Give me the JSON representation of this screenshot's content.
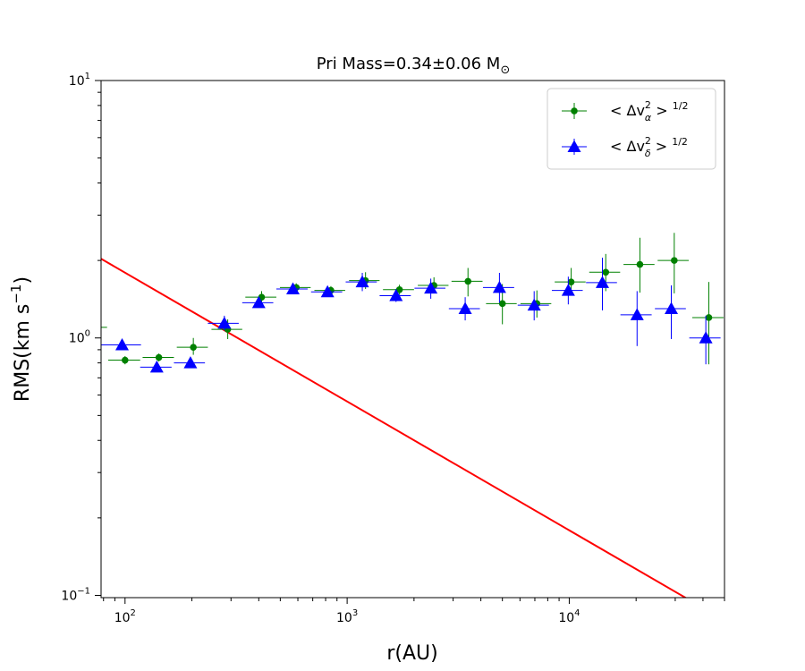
{
  "chart_data": {
    "type": "scatter",
    "title_main": "Pri Mass=0.34±0.06 M",
    "title_sub": "⊙",
    "xlabel": "r(AU)",
    "ylabel_main": "RMS(km s",
    "ylabel_sup": "−1",
    "ylabel_end": ")",
    "x_scale": "log",
    "y_scale": "log",
    "xlim": [
      78,
      50000
    ],
    "ylim": [
      0.098,
      10
    ],
    "x_ticks": [
      {
        "value": 100,
        "base": "10",
        "exp": "2"
      },
      {
        "value": 1000,
        "base": "10",
        "exp": "3"
      },
      {
        "value": 10000,
        "base": "10",
        "exp": "4"
      }
    ],
    "y_ticks": [
      {
        "value": 0.1,
        "base": "10",
        "exp": "−1"
      },
      {
        "value": 1,
        "base": "10",
        "exp": "0"
      },
      {
        "value": 10,
        "base": "10",
        "exp": "1"
      }
    ],
    "legend_position": "top-right",
    "series": [
      {
        "legend_label": "< Δv²α >^(1/2)",
        "legend_text": "< Δv",
        "legend_sup": "2",
        "legend_sub": "α",
        "legend_tail": "> ",
        "legend_pow": "1/2",
        "color": "#008000",
        "marker": "circle",
        "points": [
          {
            "x": 70,
            "y": 1.1,
            "xerr": [
              58,
              83
            ],
            "yerr": [
              1.1,
              1.1
            ]
          },
          {
            "x": 100,
            "y": 0.82,
            "xerr": [
              84,
              117
            ],
            "yerr": [
              0.79,
              0.85
            ]
          },
          {
            "x": 142,
            "y": 0.84,
            "xerr": [
              120,
              166
            ],
            "yerr": [
              0.81,
              0.87
            ]
          },
          {
            "x": 203,
            "y": 0.92,
            "xerr": [
              171,
              236
            ],
            "yerr": [
              0.86,
              1.0
            ]
          },
          {
            "x": 290,
            "y": 1.08,
            "xerr": [
              245,
              337
            ],
            "yerr": [
              0.99,
              1.18
            ]
          },
          {
            "x": 412,
            "y": 1.44,
            "xerr": [
              348,
              480
            ],
            "yerr": [
              1.36,
              1.52
            ]
          },
          {
            "x": 590,
            "y": 1.57,
            "xerr": [
              498,
              685
            ],
            "yerr": [
              1.51,
              1.63
            ]
          },
          {
            "x": 845,
            "y": 1.53,
            "xerr": [
              712,
              980
            ],
            "yerr": [
              1.48,
              1.59
            ]
          },
          {
            "x": 1210,
            "y": 1.67,
            "xerr": [
              1020,
              1400
            ],
            "yerr": [
              1.55,
              1.8
            ]
          },
          {
            "x": 1720,
            "y": 1.54,
            "xerr": [
              1450,
              2000
            ],
            "yerr": [
              1.47,
              1.61
            ]
          },
          {
            "x": 2460,
            "y": 1.6,
            "xerr": [
              2080,
              2860
            ],
            "yerr": [
              1.5,
              1.72
            ]
          },
          {
            "x": 3500,
            "y": 1.66,
            "xerr": [
              2950,
              4070
            ],
            "yerr": [
              1.45,
              1.87
            ]
          },
          {
            "x": 5000,
            "y": 1.36,
            "xerr": [
              4220,
              5800
            ],
            "yerr": [
              1.13,
              1.62
            ]
          },
          {
            "x": 7150,
            "y": 1.36,
            "xerr": [
              6030,
              8300
            ],
            "yerr": [
              1.2,
              1.53
            ]
          },
          {
            "x": 10200,
            "y": 1.65,
            "xerr": [
              8600,
              11850
            ],
            "yerr": [
              1.46,
              1.87
            ]
          },
          {
            "x": 14600,
            "y": 1.8,
            "xerr": [
              12300,
              16950
            ],
            "yerr": [
              1.52,
              2.12
            ]
          },
          {
            "x": 20800,
            "y": 1.93,
            "xerr": [
              17550,
              24200
            ],
            "yerr": [
              1.5,
              2.45
            ]
          },
          {
            "x": 29700,
            "y": 2.0,
            "xerr": [
              25000,
              34500
            ],
            "yerr": [
              1.49,
              2.56
            ]
          },
          {
            "x": 42500,
            "y": 1.2,
            "xerr": [
              35800,
              49500
            ],
            "yerr": [
              0.79,
              1.65
            ]
          }
        ]
      },
      {
        "legend_label": "< Δv²δ >^(1/2)",
        "legend_text": "< Δv",
        "legend_sup": "2",
        "legend_sub": "δ",
        "legend_tail": "> ",
        "legend_pow": "1/2",
        "color": "#0000ff",
        "marker": "triangle",
        "points": [
          {
            "x": 97,
            "y": 0.94,
            "xerr": [
              78,
              118
            ],
            "yerr": [
              0.94,
              0.94
            ]
          },
          {
            "x": 139,
            "y": 0.77,
            "xerr": [
              117,
              162
            ],
            "yerr": [
              0.74,
              0.8
            ]
          },
          {
            "x": 197,
            "y": 0.8,
            "xerr": [
              166,
              229
            ],
            "yerr": [
              0.77,
              0.83
            ]
          },
          {
            "x": 280,
            "y": 1.14,
            "xerr": [
              236,
              325
            ],
            "yerr": [
              1.07,
              1.22
            ]
          },
          {
            "x": 400,
            "y": 1.37,
            "xerr": [
              337,
              465
            ],
            "yerr": [
              1.31,
              1.43
            ]
          },
          {
            "x": 570,
            "y": 1.55,
            "xerr": [
              480,
              664
            ],
            "yerr": [
              1.5,
              1.6
            ]
          },
          {
            "x": 816,
            "y": 1.51,
            "xerr": [
              688,
              950
            ],
            "yerr": [
              1.46,
              1.56
            ]
          },
          {
            "x": 1170,
            "y": 1.65,
            "xerr": [
              985,
              1360
            ],
            "yerr": [
              1.52,
              1.79
            ]
          },
          {
            "x": 1660,
            "y": 1.46,
            "xerr": [
              1400,
              1935
            ],
            "yerr": [
              1.38,
              1.55
            ]
          },
          {
            "x": 2380,
            "y": 1.56,
            "xerr": [
              2010,
              2770
            ],
            "yerr": [
              1.42,
              1.7
            ]
          },
          {
            "x": 3400,
            "y": 1.3,
            "xerr": [
              2870,
              3960
            ],
            "yerr": [
              1.17,
              1.44
            ]
          },
          {
            "x": 4850,
            "y": 1.57,
            "xerr": [
              4090,
              5650
            ],
            "yerr": [
              1.37,
              1.79
            ]
          },
          {
            "x": 6950,
            "y": 1.34,
            "xerr": [
              5860,
              8100
            ],
            "yerr": [
              1.17,
              1.52
            ]
          },
          {
            "x": 9900,
            "y": 1.53,
            "xerr": [
              8350,
              11500
            ],
            "yerr": [
              1.35,
              1.73
            ]
          },
          {
            "x": 14100,
            "y": 1.64,
            "xerr": [
              11900,
              16400
            ],
            "yerr": [
              1.28,
              2.05
            ]
          },
          {
            "x": 20200,
            "y": 1.23,
            "xerr": [
              17000,
              23500
            ],
            "yerr": [
              0.93,
              1.52
            ]
          },
          {
            "x": 28800,
            "y": 1.3,
            "xerr": [
              24300,
              33500
            ],
            "yerr": [
              0.99,
              1.6
            ]
          },
          {
            "x": 41200,
            "y": 1.0,
            "xerr": [
              34700,
              48000
            ],
            "yerr": [
              0.79,
              1.22
            ]
          }
        ]
      }
    ],
    "line": {
      "color": "#ff0000",
      "points": [
        [
          78,
          2.03
        ],
        [
          37000,
          0.093
        ]
      ]
    }
  }
}
